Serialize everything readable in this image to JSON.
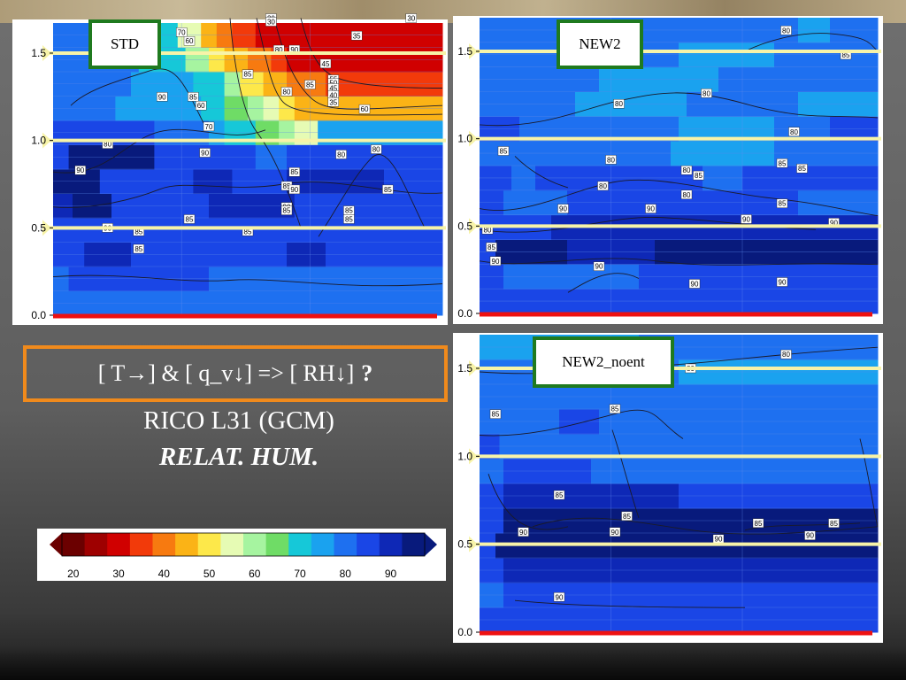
{
  "question": {
    "parts": [
      "[ T",
      "→",
      " ] & [ q_v ",
      "↓",
      "] => [ RH ",
      "↓",
      " ]"
    ],
    "mark": "?"
  },
  "subtitle": {
    "line1": "RICO L31 (GCM)",
    "line2": "RELAT. HUM."
  },
  "colors": {
    "question_border": "#f08a1c",
    "label_border": "#1f7a1f",
    "reference_line": "#f7f3a8",
    "surface_line": "#ee1111"
  },
  "chart_data": [
    {
      "type": "heatmap",
      "title": "STD",
      "yticks": [
        "0.0",
        "0.5",
        "1.0",
        "1.5"
      ],
      "ylim": [
        0,
        1.7
      ],
      "reference_lines": [
        0.5,
        1.0,
        1.5
      ],
      "contour_labels": [
        "90",
        "80",
        "90",
        "85",
        "85",
        "90",
        "85",
        "90",
        "85",
        "85",
        "85",
        "80",
        "70",
        "60",
        "55",
        "50",
        "45",
        "40",
        "35",
        "30",
        "80",
        "70",
        "60",
        "60",
        "45",
        "35",
        "30",
        "30",
        "85",
        "85",
        "90",
        "80",
        "80",
        "85",
        "85",
        "90",
        "90",
        "85",
        "85",
        "85"
      ]
    },
    {
      "type": "heatmap",
      "title": "NEW2",
      "yticks": [
        "0.0",
        "0.5",
        "1.0",
        "1.5"
      ],
      "ylim": [
        0,
        1.7
      ],
      "reference_lines": [
        0.5,
        1.0,
        1.5
      ],
      "contour_labels": [
        "80",
        "85",
        "80",
        "80",
        "80",
        "85",
        "80",
        "85",
        "85",
        "85",
        "80",
        "80",
        "80",
        "85",
        "90",
        "90",
        "90",
        "90",
        "85",
        "90",
        "90",
        "90",
        "90",
        "80"
      ]
    },
    {
      "type": "heatmap",
      "title": "NEW2_noent",
      "yticks": [
        "0.0",
        "0.5",
        "1.0",
        "1.5"
      ],
      "ylim": [
        0,
        1.7
      ],
      "reference_lines": [
        0.5,
        1.0,
        1.5
      ],
      "contour_labels": [
        "80",
        "80",
        "85",
        "85",
        "85",
        "85",
        "85",
        "85",
        "90",
        "90",
        "90",
        "90",
        "90"
      ]
    }
  ],
  "colorbar": {
    "ticks": [
      "20",
      "30",
      "40",
      "50",
      "60",
      "70",
      "80",
      "90"
    ],
    "colors": [
      "#6b0000",
      "#9e0000",
      "#d00000",
      "#f23a0a",
      "#f77a10",
      "#fbb316",
      "#fde84a",
      "#e6fbb4",
      "#a6f4a0",
      "#6fdc66",
      "#16c8d8",
      "#1aa2ef",
      "#1e70f0",
      "#1a46e6",
      "#0e28b6",
      "#081a7c"
    ]
  }
}
